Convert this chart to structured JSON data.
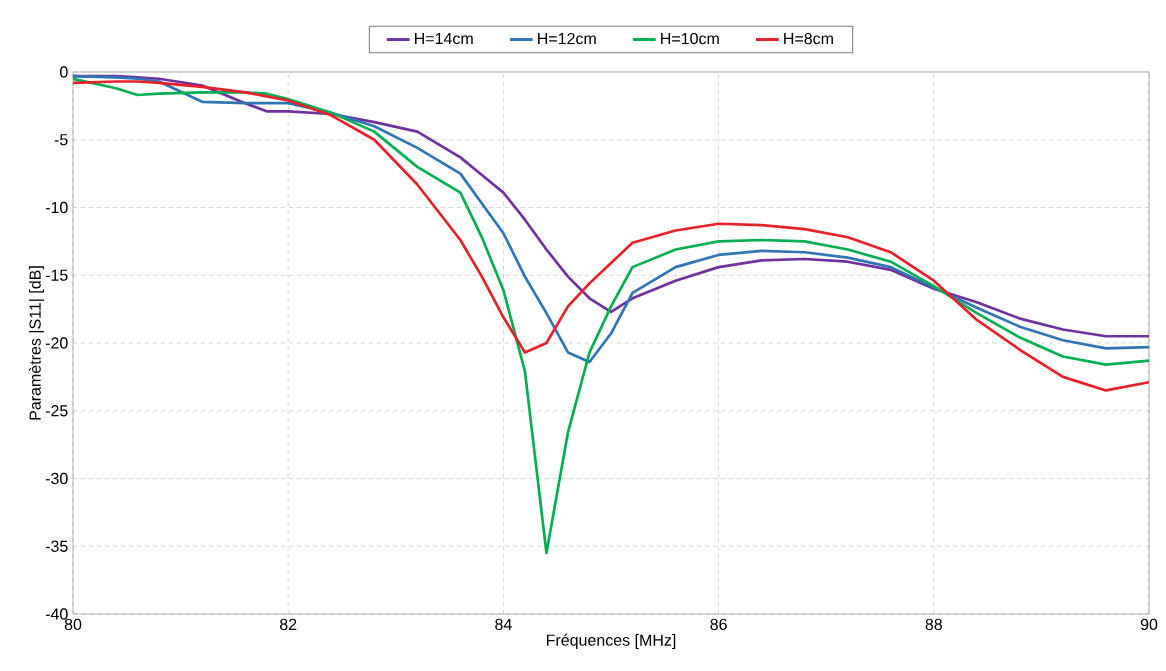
{
  "chart_data": {
    "type": "line",
    "xlabel": "Fréquences [MHz]",
    "ylabel": "Paramètres |S11| [dB]",
    "x": [
      80,
      80.4,
      80.6,
      80.8,
      81.2,
      81.6,
      81.8,
      82,
      82.4,
      82.8,
      83.2,
      83.6,
      83.8,
      84,
      84.2,
      84.4,
      84.6,
      84.8,
      85,
      85.2,
      85.6,
      86,
      86.4,
      86.8,
      87.2,
      87.6,
      88,
      88.4,
      88.8,
      89.2,
      89.6,
      90
    ],
    "series": [
      {
        "name": "H=14cm",
        "color": "#7030a0",
        "values": [
          -0.3,
          -0.3,
          -0.4,
          -0.5,
          -1.0,
          -2.3,
          -2.9,
          -2.9,
          -3.1,
          -3.7,
          -4.4,
          -6.3,
          -7.6,
          -8.9,
          -10.9,
          -13.1,
          -15.1,
          -16.7,
          -17.7,
          -16.7,
          -15.4,
          -14.4,
          -13.9,
          -13.8,
          -14.0,
          -14.6,
          -16.0,
          -17.0,
          -18.2,
          -19.0,
          -19.5,
          -19.5
        ]
      },
      {
        "name": "H=12cm",
        "color": "#2e75b6",
        "values": [
          -0.3,
          -0.4,
          -0.5,
          -0.7,
          -2.2,
          -2.3,
          -2.3,
          -2.3,
          -3.0,
          -4.0,
          -5.6,
          -7.5,
          -9.7,
          -11.9,
          -15.1,
          -17.8,
          -20.7,
          -21.4,
          -19.3,
          -16.3,
          -14.4,
          -13.5,
          -13.2,
          -13.3,
          -13.7,
          -14.4,
          -15.9,
          -17.4,
          -18.8,
          -19.8,
          -20.4,
          -20.3
        ]
      },
      {
        "name": "H=10cm",
        "color": "#00b050",
        "values": [
          -0.5,
          -1.2,
          -1.7,
          -1.6,
          -1.5,
          -1.5,
          -1.6,
          -2.0,
          -3.0,
          -4.4,
          -7.0,
          -8.9,
          -12.2,
          -16.1,
          -22.1,
          -35.5,
          -26.6,
          -20.7,
          -17.3,
          -14.4,
          -13.1,
          -12.5,
          -12.4,
          -12.5,
          -13.1,
          -14.0,
          -15.8,
          -17.8,
          -19.6,
          -21.0,
          -21.6,
          -21.3
        ]
      },
      {
        "name": "H=8cm",
        "color": "#e8202a",
        "values": [
          -0.8,
          -0.7,
          -0.7,
          -0.8,
          -1.1,
          -1.5,
          -1.8,
          -2.1,
          -3.2,
          -5.0,
          -8.3,
          -12.4,
          -15.1,
          -18.1,
          -20.7,
          -20.0,
          -17.3,
          -15.6,
          -14.1,
          -12.6,
          -11.7,
          -11.2,
          -11.3,
          -11.6,
          -12.2,
          -13.3,
          -15.4,
          -18.3,
          -20.5,
          -22.5,
          -23.5,
          -22.9
        ]
      }
    ],
    "xlim": [
      80,
      90
    ],
    "ylim": [
      -40,
      0
    ],
    "xticks": [
      80,
      82,
      84,
      86,
      88,
      90
    ],
    "yticks": [
      -40,
      -35,
      -30,
      -25,
      -20,
      -15,
      -10,
      -5,
      0
    ],
    "grid": true,
    "legend": "top",
    "line_style": "solid"
  }
}
